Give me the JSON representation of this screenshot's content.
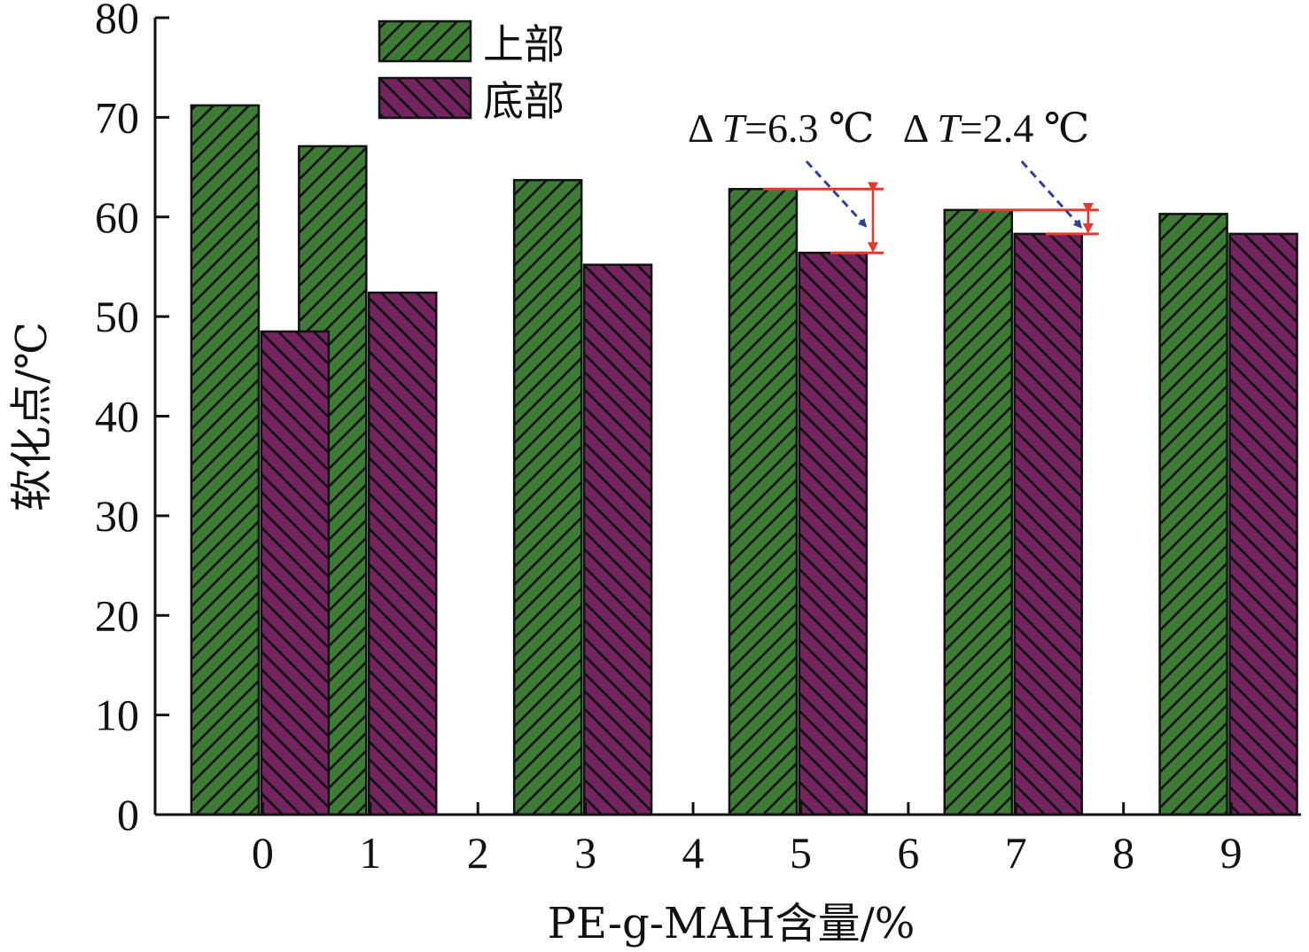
{
  "chart_data": {
    "type": "bar",
    "xlabel": "PE-g-MAH含量/%",
    "ylabel": "软化点/℃",
    "x_ticks": [
      "0",
      "1",
      "2",
      "3",
      "4",
      "5",
      "6",
      "7",
      "8",
      "9"
    ],
    "x_range": [
      -1,
      9.65
    ],
    "ylim": [
      0,
      80
    ],
    "y_ticks": [
      0,
      10,
      20,
      30,
      40,
      50,
      60,
      70,
      80
    ],
    "grid": false,
    "legend_position": "top-left",
    "series": [
      {
        "name": "上部",
        "color": "#3e7b37",
        "pattern": "hatch-forward",
        "points": [
          {
            "x": -0.35,
            "value": 71.2
          },
          {
            "x": 0.65,
            "value": 67.1
          },
          {
            "x": 2.65,
            "value": 63.7
          },
          {
            "x": 4.65,
            "value": 62.8
          },
          {
            "x": 6.65,
            "value": 60.7
          },
          {
            "x": 8.65,
            "value": 60.3
          }
        ]
      },
      {
        "name": "底部",
        "color": "#74245f",
        "pattern": "hatch-backward",
        "points": [
          {
            "x": 0.3,
            "value": 48.5
          },
          {
            "x": 1.3,
            "value": 52.4
          },
          {
            "x": 3.3,
            "value": 55.2
          },
          {
            "x": 5.3,
            "value": 56.4
          },
          {
            "x": 7.3,
            "value": 58.3
          },
          {
            "x": 9.3,
            "value": 58.3
          }
        ]
      }
    ],
    "annotations": [
      {
        "delta": "6.3",
        "text_prefix": "Δ ",
        "text_italic": "T",
        "text_value": "=6.3 ℃",
        "top": 62.8,
        "bottom": 56.4,
        "x_from": 4.65,
        "x_to": 5.77
      },
      {
        "delta": "2.4",
        "text_prefix": "Δ ",
        "text_italic": "T",
        "text_value": "=2.4 ℃",
        "top": 60.7,
        "bottom": 58.3,
        "x_from": 6.65,
        "x_to": 7.77
      }
    ]
  }
}
